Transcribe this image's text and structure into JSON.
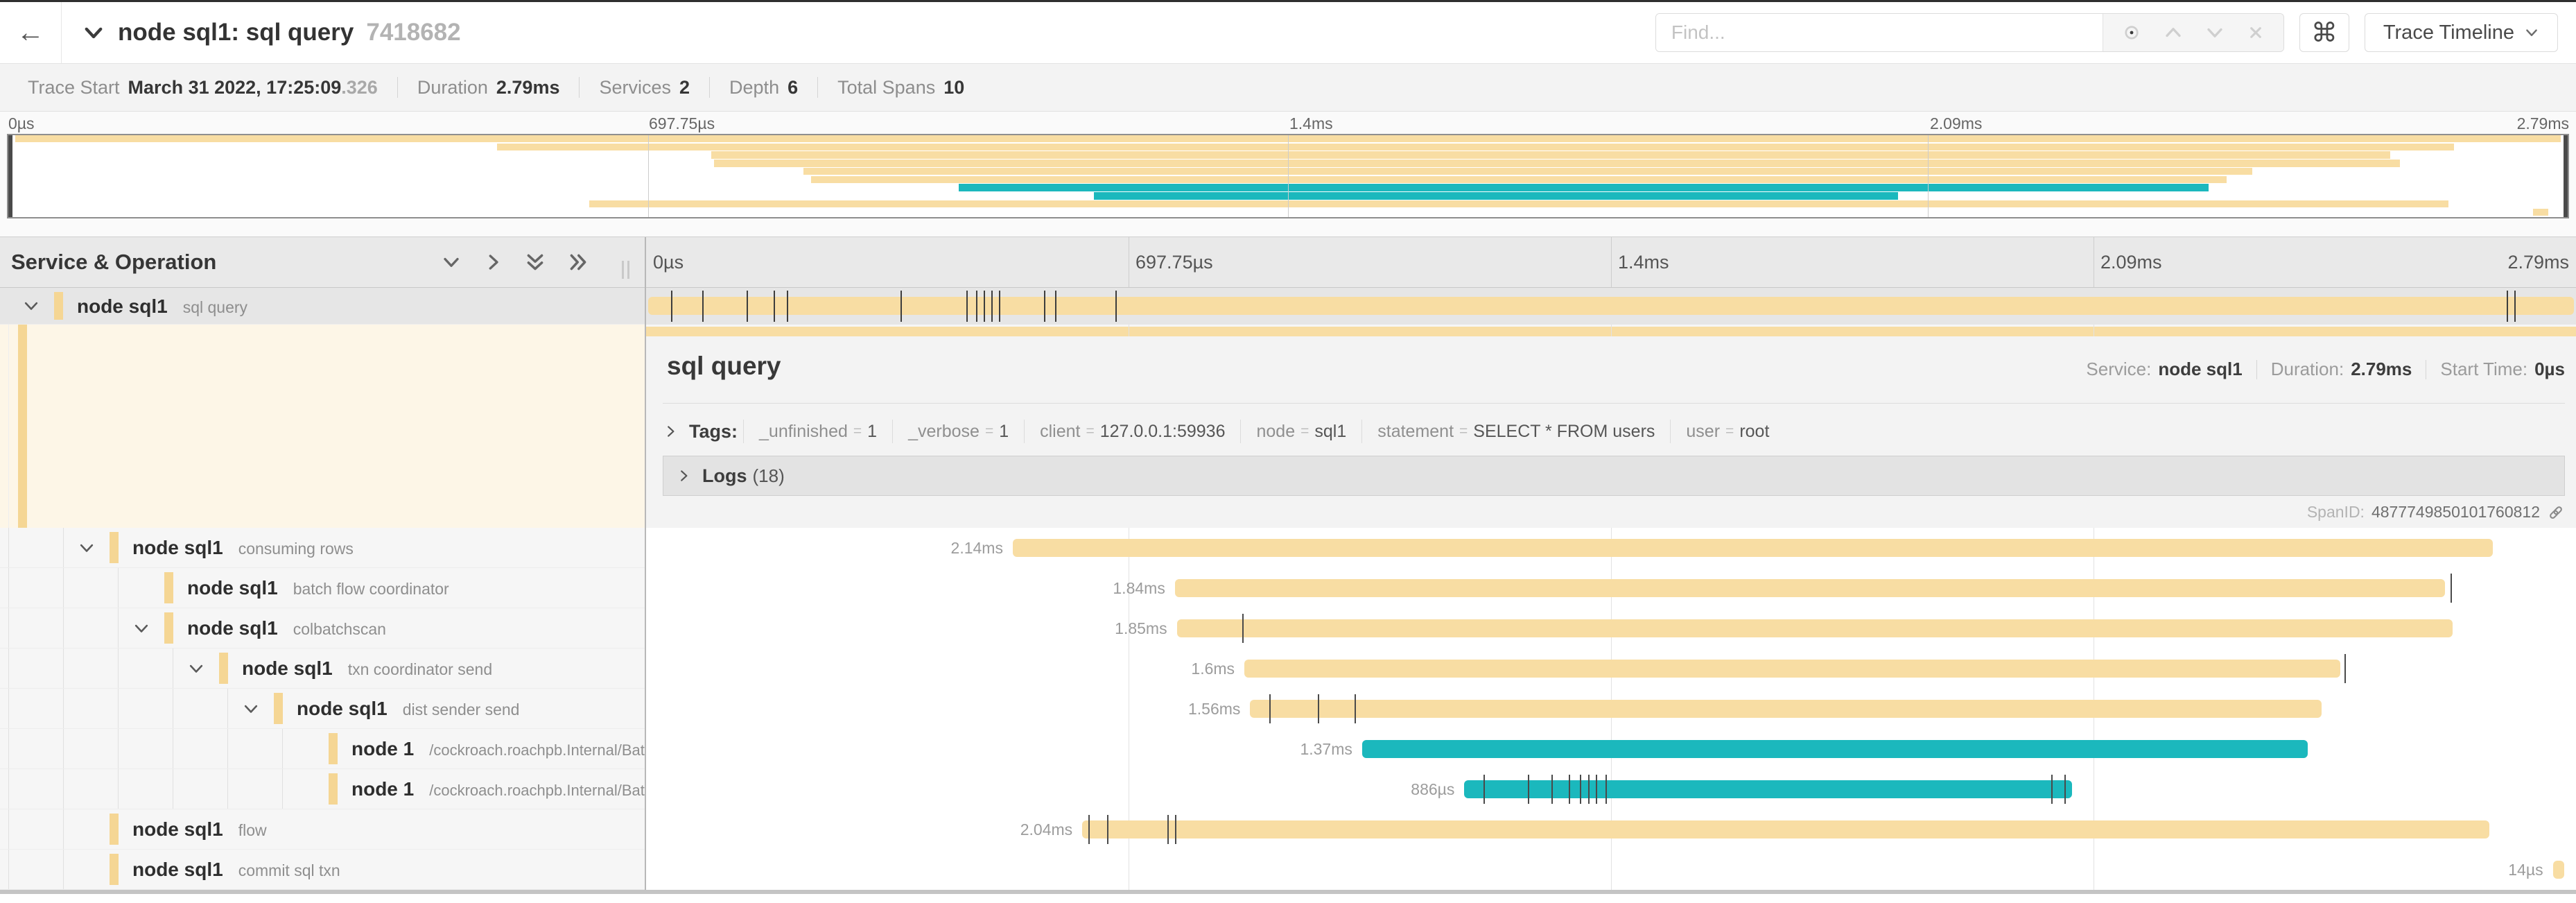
{
  "header": {
    "title": "node sql1: sql query",
    "trace_id": "7418682",
    "back_icon": "arrow-left",
    "find_placeholder": "Find...",
    "find_icons": [
      "target-icon",
      "chevron-up-icon",
      "chevron-down-icon",
      "clear-x-icon"
    ],
    "keyboard_shortcut_glyph": "⌘",
    "trace_timeline_label": "Trace Timeline"
  },
  "trace_meta": {
    "items": [
      {
        "label": "Trace Start",
        "value": "March 31 2022, 17:25:09",
        "suffix": ".326"
      },
      {
        "label": "Duration",
        "value": "2.79ms"
      },
      {
        "label": "Services",
        "value": "2"
      },
      {
        "label": "Depth",
        "value": "6"
      },
      {
        "label": "Total Spans",
        "value": "10"
      }
    ]
  },
  "axis": {
    "labels": [
      "0µs",
      "697.75µs",
      "1.4ms",
      "2.09ms",
      "2.79ms"
    ],
    "fractions": [
      0,
      0.25,
      0.5,
      0.75,
      1
    ]
  },
  "left_header": {
    "title": "Service & Operation"
  },
  "spans": [
    {
      "service": "node sql1",
      "operation": "sql query",
      "level": 0,
      "chevron": true,
      "color": "tan",
      "duration_label": "",
      "start": 0.001,
      "end": 0.999,
      "ticks": [
        0.013,
        0.029,
        0.052,
        0.066,
        0.073,
        0.132,
        0.166,
        0.171,
        0.175,
        0.179,
        0.183,
        0.206,
        0.212,
        0.243,
        0.964,
        0.968
      ],
      "selected": true
    },
    {
      "service": "node sql1",
      "operation": "consuming rows",
      "level": 1,
      "chevron": true,
      "color": "tan",
      "duration_label": "2.14ms",
      "start": 0.19,
      "end": 0.957,
      "ticks": []
    },
    {
      "service": "node sql1",
      "operation": "batch flow coordinator",
      "level": 2,
      "chevron": false,
      "color": "tan",
      "duration_label": "1.84ms",
      "start": 0.274,
      "end": 0.932,
      "ticks": [
        0.935
      ]
    },
    {
      "service": "node sql1",
      "operation": "colbatchscan",
      "level": 2,
      "chevron": true,
      "color": "tan",
      "duration_label": "1.85ms",
      "start": 0.275,
      "end": 0.936,
      "ticks": [
        0.309
      ]
    },
    {
      "service": "node sql1",
      "operation": "txn coordinator send",
      "level": 3,
      "chevron": true,
      "color": "tan",
      "duration_label": "1.6ms",
      "start": 0.31,
      "end": 0.878,
      "ticks": [
        0.88
      ]
    },
    {
      "service": "node sql1",
      "operation": "dist sender send",
      "level": 4,
      "chevron": true,
      "color": "tan",
      "duration_label": "1.56ms",
      "start": 0.313,
      "end": 0.868,
      "ticks": [
        0.323,
        0.348,
        0.367
      ]
    },
    {
      "service": "node 1",
      "operation": "/cockroach.roachpb.Internal/Batch",
      "level": 5,
      "chevron": false,
      "color": "teal",
      "duration_label": "1.37ms",
      "start": 0.371,
      "end": 0.861,
      "ticks": []
    },
    {
      "service": "node 1",
      "operation": "/cockroach.roachpb.Internal/Batch",
      "level": 5,
      "chevron": false,
      "color": "teal",
      "duration_label": "886µs",
      "start": 0.424,
      "end": 0.739,
      "ticks": [
        0.434,
        0.457,
        0.469,
        0.478,
        0.484,
        0.488,
        0.492,
        0.497,
        0.728,
        0.735
      ]
    },
    {
      "service": "node sql1",
      "operation": "flow",
      "level": 1,
      "chevron": false,
      "color": "tan",
      "duration_label": "2.04ms",
      "start": 0.226,
      "end": 0.955,
      "ticks": [
        0.229,
        0.239,
        0.27,
        0.274
      ]
    },
    {
      "service": "node sql1",
      "operation": "commit sql txn",
      "level": 1,
      "chevron": false,
      "color": "tan",
      "duration_label": "14µs",
      "start": 0.988,
      "end": 0.994,
      "ticks": []
    }
  ],
  "detail": {
    "title": "sql query",
    "service_label": "Service:",
    "service": "node sql1",
    "duration_label": "Duration:",
    "duration": "2.79ms",
    "start_label": "Start Time:",
    "start": "0µs",
    "tags_label": "Tags:",
    "tags": [
      {
        "key": "_unfinished",
        "value": "1"
      },
      {
        "key": "_verbose",
        "value": "1"
      },
      {
        "key": "client",
        "value": "127.0.0.1:59936"
      },
      {
        "key": "node",
        "value": "sql1"
      },
      {
        "key": "statement",
        "value": "SELECT * FROM users"
      },
      {
        "key": "user",
        "value": "root"
      }
    ],
    "logs_label": "Logs",
    "logs_count": "(18)",
    "spanid_label": "SpanID:",
    "spanid": "4877749850101760812"
  },
  "colors": {
    "tan": "#f8dda3",
    "teal": "#1bb8bd",
    "accent": "#f5d694",
    "cream": "#fdf6e7"
  }
}
